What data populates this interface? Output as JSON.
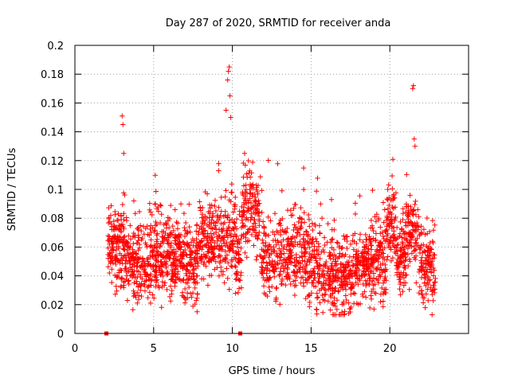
{
  "chart_data": {
    "type": "scatter",
    "title": "Day 287 of 2020, SRMTID for receiver anda",
    "xlabel": "GPS time / hours",
    "ylabel": "SRMTID / TECUs",
    "xlim": [
      0,
      25
    ],
    "ylim": [
      0,
      0.2
    ],
    "xticks": [
      0,
      5,
      10,
      15,
      20
    ],
    "xtick_labels": [
      "0",
      "5",
      "10",
      "15",
      "20"
    ],
    "yticks": [
      0,
      0.02,
      0.04,
      0.06,
      0.08,
      0.1,
      0.12,
      0.14,
      0.16,
      0.18,
      0.2
    ],
    "ytick_labels": [
      "0",
      "0.02",
      "0.04",
      "0.06",
      "0.08",
      "0.1",
      "0.12",
      "0.14",
      "0.16",
      "0.18",
      "0.2"
    ],
    "grid": true,
    "marker": "+",
    "color": "#ff0000",
    "data_start_hour": 2.1,
    "data_end_hour": 22.9,
    "typical_range": [
      0.02,
      0.09
    ],
    "notable_peaks": [
      {
        "x": 3.0,
        "y": 0.151
      },
      {
        "x": 3.05,
        "y": 0.145
      },
      {
        "x": 3.1,
        "y": 0.125
      },
      {
        "x": 9.8,
        "y": 0.185
      },
      {
        "x": 9.75,
        "y": 0.182
      },
      {
        "x": 9.7,
        "y": 0.176
      },
      {
        "x": 9.85,
        "y": 0.165
      },
      {
        "x": 9.6,
        "y": 0.155
      },
      {
        "x": 9.9,
        "y": 0.15
      },
      {
        "x": 21.5,
        "y": 0.172
      },
      {
        "x": 21.45,
        "y": 0.17
      },
      {
        "x": 21.55,
        "y": 0.135
      },
      {
        "x": 21.6,
        "y": 0.13
      }
    ],
    "zero_markers": [
      {
        "x": 2.0,
        "y": 0
      },
      {
        "x": 10.5,
        "y": 0
      }
    ]
  }
}
